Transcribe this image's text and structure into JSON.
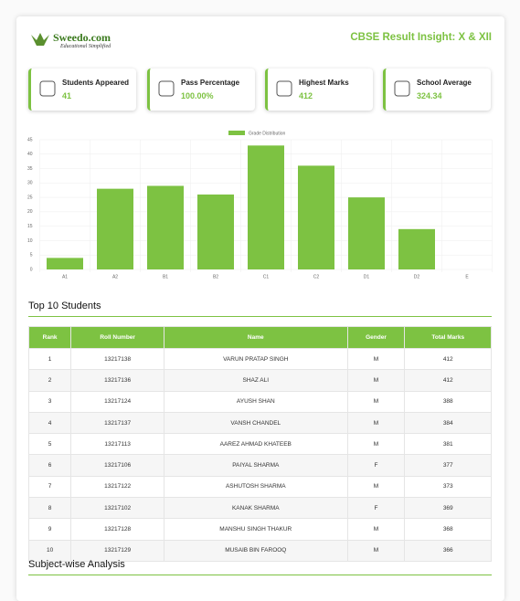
{
  "header": {
    "logo": "Sweedo.com",
    "tagline": "Educational Simplified",
    "title": "CBSE Result Insight: X & XII"
  },
  "cards": [
    {
      "label": "Students Appeared",
      "value": "41"
    },
    {
      "label": "Pass Percentage",
      "value": "100.00%"
    },
    {
      "label": "Highest Marks",
      "value": "412"
    },
    {
      "label": "School Average",
      "value": "324.34"
    }
  ],
  "chart_data": {
    "type": "bar",
    "series_name": "Grade Distribution",
    "color": "#7dc242",
    "categories": [
      "A1",
      "A2",
      "B1",
      "B2",
      "C1",
      "C2",
      "D1",
      "D2",
      "E"
    ],
    "values": [
      4,
      28,
      29,
      26,
      43,
      36,
      25,
      14,
      0
    ],
    "ylim": [
      0,
      45
    ],
    "yticks": [
      0,
      5,
      10,
      15,
      20,
      25,
      30,
      35,
      40,
      45
    ],
    "grid": true
  },
  "top_students": {
    "title": "Top 10 Students",
    "columns": [
      "Rank",
      "Roll Number",
      "Name",
      "Gender",
      "Total Marks"
    ],
    "rows": [
      [
        1,
        "13217138",
        "VARUN PRATAP SINGH",
        "M",
        412
      ],
      [
        2,
        "13217136",
        "SHAZ ALI",
        "M",
        412
      ],
      [
        3,
        "13217124",
        "AYUSH SHAN",
        "M",
        388
      ],
      [
        4,
        "13217137",
        "VANSH CHANDEL",
        "M",
        384
      ],
      [
        5,
        "13217113",
        "AAREZ AHMAD KHATEEB",
        "M",
        381
      ],
      [
        6,
        "13217106",
        "PAIYAL SHARMA",
        "F",
        377
      ],
      [
        7,
        "13217122",
        "ASHUTOSH SHARMA",
        "M",
        373
      ],
      [
        8,
        "13217102",
        "KANAK SHARMA",
        "F",
        369
      ],
      [
        9,
        "13217128",
        "MANSHU SINGH THAKUR",
        "M",
        368
      ],
      [
        10,
        "13217129",
        "MUSAIB BIN FAROOQ",
        "M",
        366
      ]
    ]
  },
  "subject_analysis": {
    "title": "Subject-wise Analysis"
  }
}
